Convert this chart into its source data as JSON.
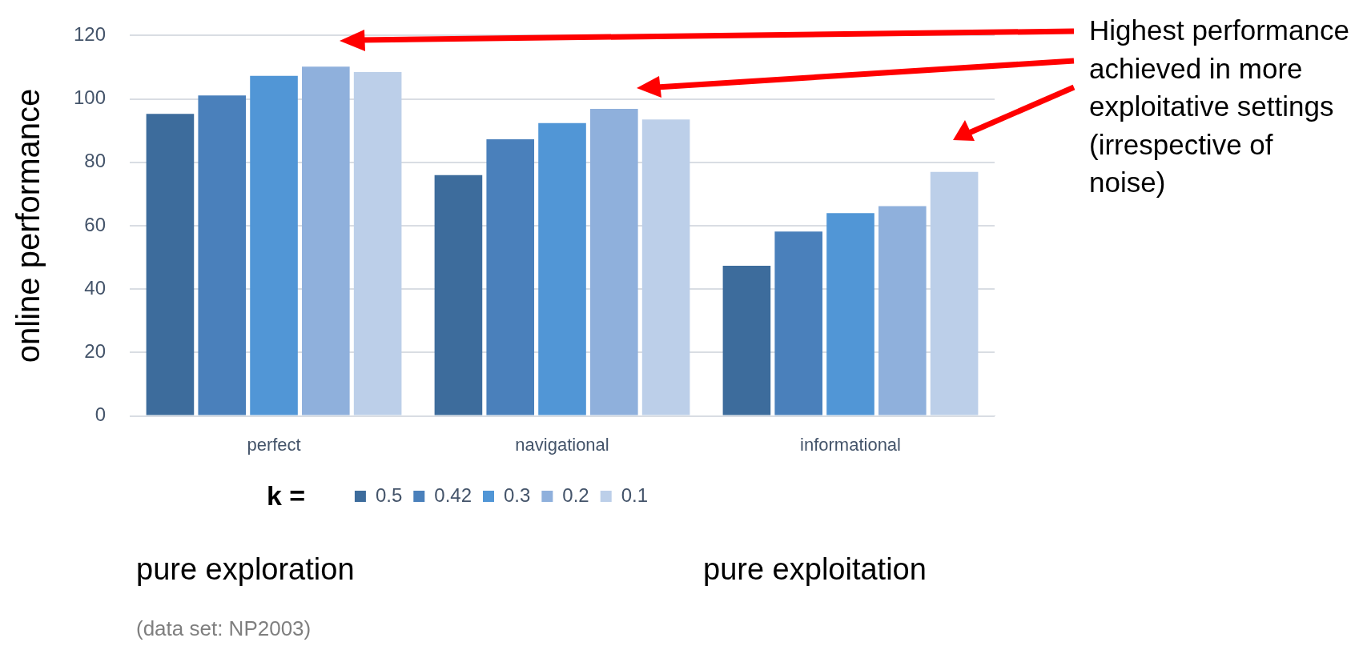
{
  "chart_data": {
    "type": "bar",
    "ylabel": "online performance",
    "legend_title": "k =",
    "categories": [
      "perfect",
      "navigational",
      "informational"
    ],
    "series": [
      {
        "name": "0.5",
        "color": "#3d6c9c",
        "values": [
          95.3,
          76.0,
          47.4
        ]
      },
      {
        "name": "0.42",
        "color": "#4a80bb",
        "values": [
          101.1,
          87.3,
          58.2
        ]
      },
      {
        "name": "0.3",
        "color": "#5196d6",
        "values": [
          107.3,
          92.4,
          64.0
        ]
      },
      {
        "name": "0.2",
        "color": "#8fb0dc",
        "values": [
          110.2,
          96.9,
          66.2
        ]
      },
      {
        "name": "0.1",
        "color": "#bccfe9",
        "values": [
          108.5,
          93.5,
          77.0
        ]
      }
    ],
    "ylim": [
      0,
      120
    ],
    "yticks": [
      0,
      20,
      40,
      60,
      80,
      100,
      120
    ],
    "grid": "y",
    "legend": "bottom",
    "annotations": [
      "Highest performance achieved in more exploitative settings (irrespective of noise)",
      "pure exploration",
      "pure exploitation",
      "(data set: NP2003)"
    ]
  }
}
